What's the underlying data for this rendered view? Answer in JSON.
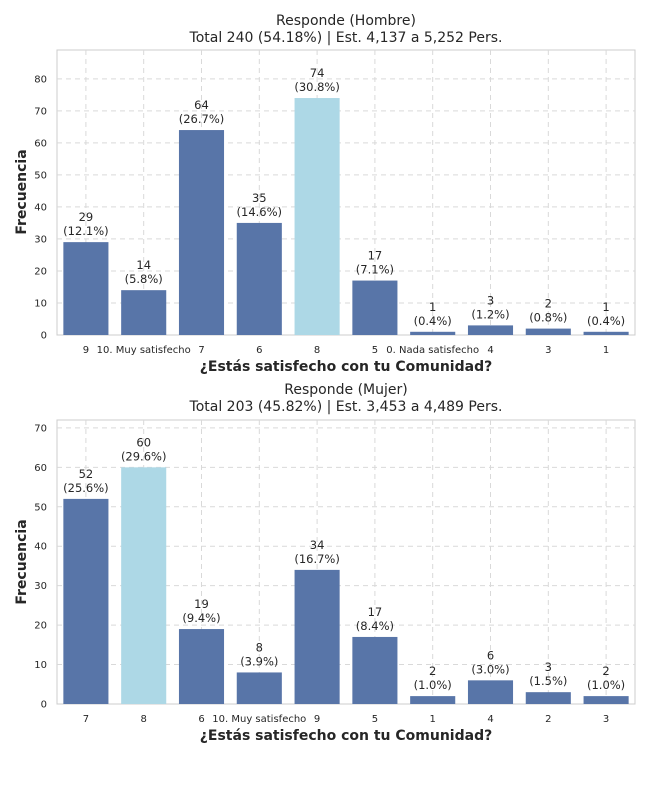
{
  "chart_data": [
    {
      "type": "bar",
      "title": "Responde (Hombre)",
      "subtitle": "Total 240 (54.18%) | Est. 4,137 a 5,252 Pers.",
      "xlabel": "¿Estás satisfecho con tu Comunidad?",
      "ylabel": "Frecuencia",
      "categories": [
        "9",
        "10. Muy satisfecho",
        "7",
        "6",
        "8",
        "5",
        "0. Nada satisfecho",
        "4",
        "3",
        "1"
      ],
      "values": [
        29,
        14,
        64,
        35,
        74,
        17,
        1,
        3,
        2,
        1
      ],
      "percent_labels": [
        "(12.1%)",
        "(5.8%)",
        "(26.7%)",
        "(14.6%)",
        "(30.8%)",
        "(7.1%)",
        "(0.4%)",
        "(1.2%)",
        "(0.8%)",
        "(0.4%)"
      ],
      "highlight_index": 4,
      "ylim": [
        0,
        89
      ],
      "yticks": [
        0,
        10,
        20,
        30,
        40,
        50,
        60,
        70,
        80
      ],
      "grid": true,
      "colors": {
        "bar": "#5875a8",
        "highlight": "#add8e6"
      }
    },
    {
      "type": "bar",
      "title": "Responde (Mujer)",
      "subtitle": "Total 203 (45.82%) | Est. 3,453 a 4,489 Pers.",
      "xlabel": "¿Estás satisfecho con tu Comunidad?",
      "ylabel": "Frecuencia",
      "categories": [
        "7",
        "8",
        "6",
        "10. Muy satisfecho",
        "9",
        "5",
        "1",
        "4",
        "2",
        "3"
      ],
      "values": [
        52,
        60,
        19,
        8,
        34,
        17,
        2,
        6,
        3,
        2
      ],
      "percent_labels": [
        "(25.6%)",
        "(29.6%)",
        "(9.4%)",
        "(3.9%)",
        "(16.7%)",
        "(8.4%)",
        "(1.0%)",
        "(3.0%)",
        "(1.5%)",
        "(1.0%)"
      ],
      "highlight_index": 1,
      "ylim": [
        0,
        72
      ],
      "yticks": [
        0,
        10,
        20,
        30,
        40,
        50,
        60,
        70
      ],
      "grid": true,
      "colors": {
        "bar": "#5875a8",
        "highlight": "#add8e6"
      }
    }
  ]
}
